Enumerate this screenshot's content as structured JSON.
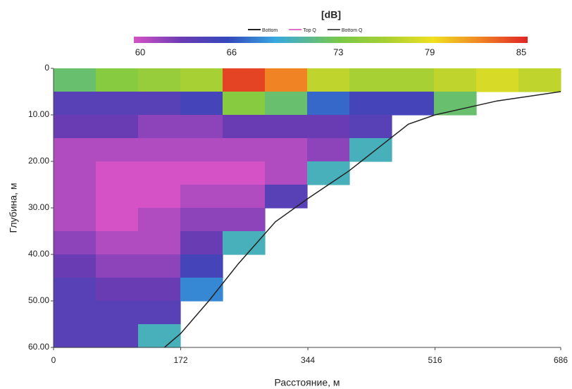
{
  "chart_data": {
    "type": "heatmap",
    "colorbar_title": "[dB]",
    "xlabel": "Расстояние, м",
    "ylabel": "Глубина, м",
    "legend": [
      {
        "name": "Bottom",
        "color": "#222222"
      },
      {
        "name": "Top Q",
        "color": "#e070c8"
      },
      {
        "name": "Bottom Q",
        "color": "#555555"
      }
    ],
    "xlim": [
      0,
      686
    ],
    "xticks": [
      0,
      172,
      344,
      516,
      686
    ],
    "ylim": [
      0,
      60
    ],
    "y_inverted": true,
    "yticks": [
      0,
      {
        "value": 10,
        "label": "10.00"
      },
      {
        "value": 20,
        "label": "20.00"
      },
      {
        "value": 30,
        "label": "30.00"
      },
      {
        "value": 40,
        "label": "40.00"
      },
      {
        "value": 50,
        "label": "50.00"
      },
      {
        "value": 60,
        "label": "60.00"
      }
    ],
    "zlim": [
      60,
      85
    ],
    "zticks": [
      60,
      66,
      73,
      79,
      85
    ],
    "colorscale": [
      [
        60,
        "#d452c6"
      ],
      [
        63,
        "#6a3cb4"
      ],
      [
        66,
        "#3448bc"
      ],
      [
        69,
        "#38a8e0"
      ],
      [
        73,
        "#78c848"
      ],
      [
        76,
        "#a6d034"
      ],
      [
        79,
        "#f0e020"
      ],
      [
        82,
        "#f08424"
      ],
      [
        85,
        "#e02424"
      ]
    ],
    "z": [
      [
        72,
        74,
        75,
        76,
        84,
        82,
        77,
        76,
        76,
        77,
        78,
        77
      ],
      [
        64,
        64,
        64,
        65,
        74,
        72,
        67,
        65,
        65,
        72,
        null,
        null
      ],
      [
        63,
        63,
        62,
        62,
        63,
        63,
        63,
        64,
        null,
        null,
        null,
        null
      ],
      [
        61,
        61,
        61,
        61,
        61,
        61,
        62,
        70,
        null,
        null,
        null,
        null
      ],
      [
        61,
        60,
        60,
        60,
        60,
        61,
        70,
        null,
        null,
        null,
        null,
        null
      ],
      [
        61,
        60,
        60,
        61,
        61,
        64,
        null,
        null,
        null,
        null,
        null,
        null
      ],
      [
        61,
        60,
        61,
        62,
        62,
        null,
        null,
        null,
        null,
        null,
        null,
        null
      ],
      [
        62,
        61,
        61,
        63,
        70,
        null,
        null,
        null,
        null,
        null,
        null,
        null
      ],
      [
        63,
        62,
        62,
        65,
        null,
        null,
        null,
        null,
        null,
        null,
        null,
        null
      ],
      [
        64,
        63,
        63,
        68,
        null,
        null,
        null,
        null,
        null,
        null,
        null,
        null
      ],
      [
        64,
        64,
        64,
        null,
        null,
        null,
        null,
        null,
        null,
        null,
        null,
        null
      ],
      [
        64,
        64,
        70,
        null,
        null,
        null,
        null,
        null,
        null,
        null,
        null,
        null
      ]
    ],
    "bottom": {
      "x": [
        150,
        172,
        210,
        250,
        300,
        344,
        400,
        440,
        480,
        516,
        600,
        686
      ],
      "y": [
        60,
        57,
        50,
        42,
        33,
        28,
        22,
        17,
        12,
        10,
        7,
        5
      ]
    }
  }
}
